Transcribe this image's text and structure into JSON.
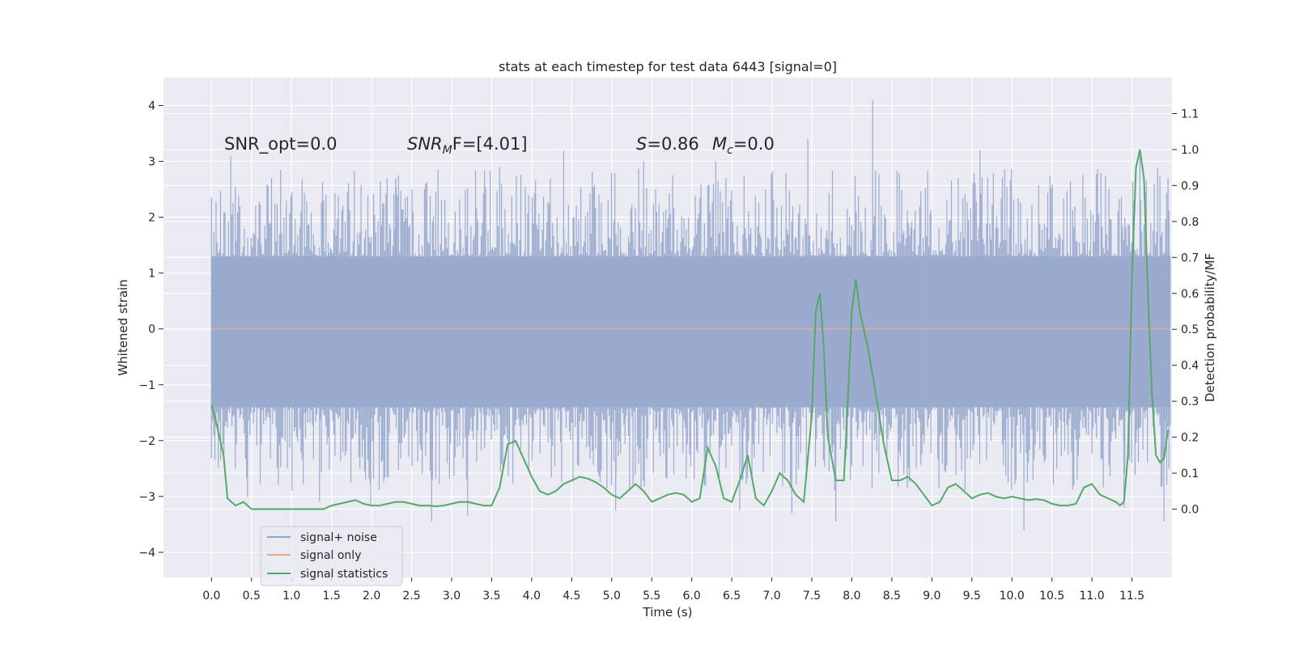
{
  "chart_data": {
    "type": "line",
    "title": "stats at each timestep for test data 6443 [signal=0]",
    "xlabel": "Time (s)",
    "ylabel_left": "Whitened strain",
    "ylabel_right": "Detection probability/MF",
    "xlim": [
      -0.6,
      12.0
    ],
    "ylim_left": [
      -4.45,
      4.5
    ],
    "ylim_right": [
      -0.19,
      1.2
    ],
    "x_ticks": [
      "0.0",
      "0.5",
      "1.0",
      "1.5",
      "2.0",
      "2.5",
      "3.0",
      "3.5",
      "4.0",
      "4.5",
      "5.0",
      "5.5",
      "6.0",
      "6.5",
      "7.0",
      "7.5",
      "8.0",
      "8.5",
      "9.0",
      "9.5",
      "10.0",
      "10.5",
      "11.0",
      "11.5"
    ],
    "y_left_ticks": [
      4,
      3,
      2,
      1,
      0,
      -1,
      -2,
      -3,
      -4
    ],
    "y_left_tick_labels": [
      "4",
      "3",
      "2",
      "1",
      "0",
      "−1",
      "−2",
      "−3",
      "−4"
    ],
    "y_right_ticks": [
      "1.1",
      "1.0",
      "0.9",
      "0.8",
      "0.7",
      "0.6",
      "0.5",
      "0.4",
      "0.3",
      "0.2",
      "0.1",
      "0.0"
    ],
    "grid": true,
    "annotations": {
      "snr_opt": "SNR_opt=0.0",
      "snr_mf_prefix": "SNR",
      "snr_mf_sub": "M",
      "snr_mf_suffix": "F=[4.01]",
      "s_var": "S",
      "s_value": "=0.86",
      "mc_var": "M",
      "mc_sub": "c",
      "mc_value": "=0.0"
    },
    "legend": {
      "placement": "lower-left",
      "entries": [
        "signal+ noise",
        "signal only",
        "signal statistics"
      ]
    },
    "series": [
      {
        "name": "signal+ noise",
        "axis": "left",
        "color": "#4c72b0",
        "x_range": [
          0.0,
          11.98
        ],
        "band_typical": [
          -1.4,
          1.3
        ],
        "peaks": [
          {
            "x": 0.24,
            "y": 3.1
          },
          {
            "x": 0.75,
            "y": 2.7
          },
          {
            "x": 2.3,
            "y": 2.7
          },
          {
            "x": 3.6,
            "y": 2.9
          },
          {
            "x": 4.4,
            "y": 3.2
          },
          {
            "x": 5.4,
            "y": 3.0
          },
          {
            "x": 6.3,
            "y": 3.0
          },
          {
            "x": 7.45,
            "y": 3.4
          },
          {
            "x": 8.26,
            "y": 4.1
          },
          {
            "x": 9.6,
            "y": 3.2
          },
          {
            "x": 11.6,
            "y": 3.1
          },
          {
            "x": 11.95,
            "y": 2.7
          }
        ],
        "troughs": [
          {
            "x": 0.45,
            "y": -3.0
          },
          {
            "x": 1.35,
            "y": -3.1
          },
          {
            "x": 1.99,
            "y": -3.15
          },
          {
            "x": 2.75,
            "y": -3.45
          },
          {
            "x": 3.2,
            "y": -3.35
          },
          {
            "x": 5.05,
            "y": -3.25
          },
          {
            "x": 6.6,
            "y": -3.25
          },
          {
            "x": 7.25,
            "y": -3.3
          },
          {
            "x": 7.8,
            "y": -3.45
          },
          {
            "x": 10.15,
            "y": -3.6
          },
          {
            "x": 11.4,
            "y": -3.2
          },
          {
            "x": 11.9,
            "y": -3.45
          }
        ]
      },
      {
        "name": "signal only",
        "axis": "left",
        "color": "#dd8452",
        "x": [
          0.0,
          11.98
        ],
        "y": [
          0.0,
          0.0
        ]
      },
      {
        "name": "signal statistics",
        "axis": "right",
        "color": "#55a868",
        "x": [
          0.0,
          0.05,
          0.1,
          0.15,
          0.2,
          0.3,
          0.4,
          0.5,
          0.6,
          0.8,
          1.0,
          1.2,
          1.4,
          1.5,
          1.6,
          1.7,
          1.8,
          1.9,
          2.0,
          2.1,
          2.2,
          2.3,
          2.4,
          2.5,
          2.6,
          2.7,
          2.8,
          2.9,
          3.0,
          3.1,
          3.2,
          3.3,
          3.4,
          3.5,
          3.6,
          3.7,
          3.8,
          3.9,
          4.0,
          4.1,
          4.2,
          4.3,
          4.4,
          4.5,
          4.6,
          4.7,
          4.8,
          4.9,
          5.0,
          5.1,
          5.2,
          5.3,
          5.4,
          5.5,
          5.6,
          5.7,
          5.8,
          5.9,
          6.0,
          6.1,
          6.2,
          6.3,
          6.4,
          6.5,
          6.6,
          6.7,
          6.8,
          6.9,
          7.0,
          7.1,
          7.2,
          7.3,
          7.4,
          7.5,
          7.55,
          7.6,
          7.65,
          7.7,
          7.8,
          7.9,
          7.95,
          8.0,
          8.05,
          8.1,
          8.2,
          8.3,
          8.4,
          8.5,
          8.6,
          8.7,
          8.8,
          8.9,
          9.0,
          9.1,
          9.2,
          9.3,
          9.4,
          9.5,
          9.6,
          9.7,
          9.8,
          9.9,
          10.0,
          10.1,
          10.2,
          10.3,
          10.4,
          10.5,
          10.6,
          10.7,
          10.8,
          10.9,
          11.0,
          11.1,
          11.2,
          11.3,
          11.35,
          11.4,
          11.45,
          11.5,
          11.55,
          11.6,
          11.65,
          11.7,
          11.75,
          11.8,
          11.85,
          11.9,
          11.95
        ],
        "y": [
          0.29,
          0.25,
          0.2,
          0.15,
          0.03,
          0.01,
          0.02,
          0.0,
          0.0,
          0.0,
          0.0,
          0.0,
          0.0,
          0.01,
          0.015,
          0.02,
          0.025,
          0.015,
          0.01,
          0.01,
          0.015,
          0.02,
          0.02,
          0.015,
          0.01,
          0.01,
          0.008,
          0.01,
          0.015,
          0.02,
          0.02,
          0.015,
          0.01,
          0.01,
          0.06,
          0.18,
          0.19,
          0.14,
          0.09,
          0.05,
          0.04,
          0.05,
          0.07,
          0.08,
          0.09,
          0.085,
          0.075,
          0.06,
          0.04,
          0.03,
          0.05,
          0.07,
          0.05,
          0.02,
          0.03,
          0.04,
          0.045,
          0.04,
          0.02,
          0.03,
          0.17,
          0.12,
          0.03,
          0.02,
          0.08,
          0.15,
          0.03,
          0.01,
          0.05,
          0.1,
          0.08,
          0.04,
          0.02,
          0.26,
          0.55,
          0.6,
          0.45,
          0.2,
          0.08,
          0.08,
          0.3,
          0.55,
          0.64,
          0.55,
          0.45,
          0.32,
          0.18,
          0.08,
          0.08,
          0.09,
          0.07,
          0.04,
          0.01,
          0.02,
          0.06,
          0.07,
          0.05,
          0.03,
          0.04,
          0.045,
          0.035,
          0.03,
          0.035,
          0.03,
          0.025,
          0.028,
          0.025,
          0.015,
          0.01,
          0.01,
          0.015,
          0.06,
          0.07,
          0.04,
          0.03,
          0.02,
          0.01,
          0.02,
          0.15,
          0.65,
          0.95,
          1.0,
          0.92,
          0.6,
          0.32,
          0.15,
          0.13,
          0.14,
          0.22
        ]
      }
    ]
  }
}
